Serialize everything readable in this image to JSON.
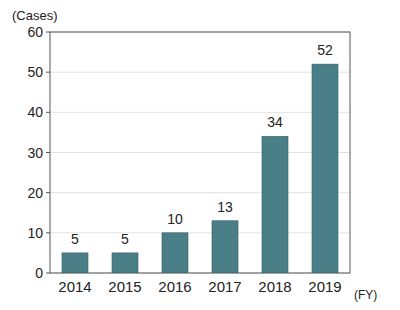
{
  "chart_data": {
    "type": "bar",
    "y_label": "(Cases)",
    "x_label": "(FY)",
    "categories": [
      "2014",
      "2015",
      "2016",
      "2017",
      "2018",
      "2019"
    ],
    "values": [
      5,
      5,
      10,
      13,
      34,
      52
    ],
    "color": "#4a7f87",
    "ylim": [
      0,
      60
    ],
    "yticks": [
      0,
      10,
      20,
      30,
      40,
      50,
      60
    ],
    "grid": true,
    "data_labels": true
  }
}
